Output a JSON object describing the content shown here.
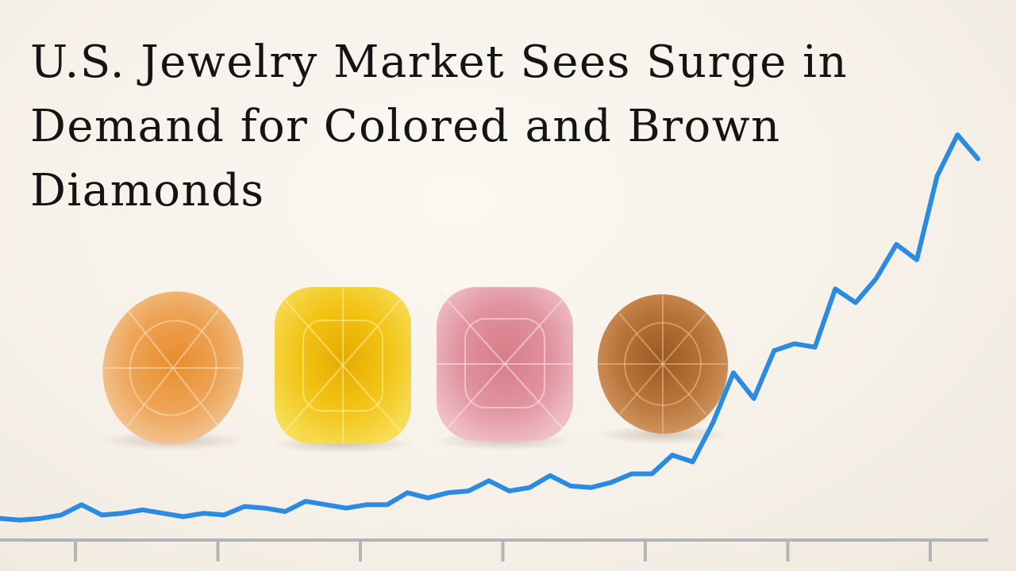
{
  "headline": "U.S. Jewelry Market Sees Surge in Demand for Colored and Brown Diamonds",
  "colors": {
    "trend_line": "#2a8be0",
    "axis": "#b4b4b4",
    "text": "#141414",
    "background": "#f7f3ec"
  },
  "gems": [
    {
      "name": "orange-oval-diamond",
      "color": "#eda457"
    },
    {
      "name": "yellow-cushion-diamond",
      "color": "#f2c416"
    },
    {
      "name": "pink-cushion-diamond",
      "color": "#e0929e"
    },
    {
      "name": "brown-round-diamond",
      "color": "#b7733a"
    }
  ],
  "chart_data": {
    "type": "line",
    "title": "",
    "xlabel": "",
    "ylabel": "",
    "x_tick_count": 7,
    "grid": false,
    "series": [
      {
        "values": [
          2,
          1,
          2,
          4,
          10,
          4,
          5,
          7,
          5,
          3,
          5,
          4,
          9,
          8,
          6,
          12,
          10,
          8,
          10,
          10,
          17,
          14,
          17,
          18,
          24,
          18,
          20,
          27,
          21,
          20,
          23,
          28,
          28,
          39,
          35,
          58,
          87,
          72,
          100,
          104,
          102,
          136,
          128,
          142,
          162,
          153,
          202,
          226,
          212
        ]
      }
    ]
  }
}
